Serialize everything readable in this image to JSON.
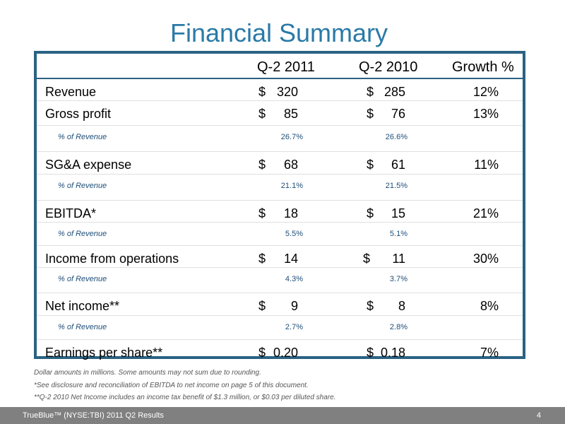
{
  "title": "Financial Summary",
  "table": {
    "columns": [
      "Q-2 2011",
      "Q-2 2010",
      "Growth %"
    ],
    "currency_symbol": "$",
    "rows": [
      {
        "label": "Revenue",
        "q2011": "320",
        "q2010": "285",
        "growth": "12%"
      },
      {
        "label": "Gross profit",
        "q2011": "85",
        "q2010": "76",
        "growth": "13%"
      },
      {
        "label": "% of Revenue",
        "q2011": "26.7%",
        "q2010": "26.6%"
      },
      {
        "label": "SG&A expense",
        "q2011": "68",
        "q2010": "61",
        "growth": "11%"
      },
      {
        "label": "% of Revenue",
        "q2011": "21.1%",
        "q2010": "21.5%"
      },
      {
        "label": "EBITDA*",
        "q2011": "18",
        "q2010": "15",
        "growth": "21%"
      },
      {
        "label": "% of Revenue",
        "q2011": "5.5%",
        "q2010": "5.1%"
      },
      {
        "label": "Income from operations",
        "q2011": "14",
        "q2010": "11",
        "growth": "30%"
      },
      {
        "label": "% of Revenue",
        "q2011": "4.3%",
        "q2010": "3.7%"
      },
      {
        "label": "Net income**",
        "q2011": "9",
        "q2010": "8",
        "growth": "8%"
      },
      {
        "label": "% of Revenue",
        "q2011": "2.7%",
        "q2010": "2.8%"
      },
      {
        "label": "Earnings per share**",
        "q2011": "0.20",
        "q2010": "0.18",
        "growth": "7%"
      }
    ]
  },
  "notes": [
    "Dollar amounts in millions.  Some amounts may not sum due to rounding.",
    "*See disclosure and reconciliation of EBITDA to net income on page 5 of this document.",
    "**Q-2 2010 Net Income includes an income tax benefit of $1.3 million, or $0.03 per diluted share."
  ],
  "footer": {
    "left": "TrueBlue™ (NYSE:TBI)   2011 Q2 Results",
    "page": "4"
  }
}
